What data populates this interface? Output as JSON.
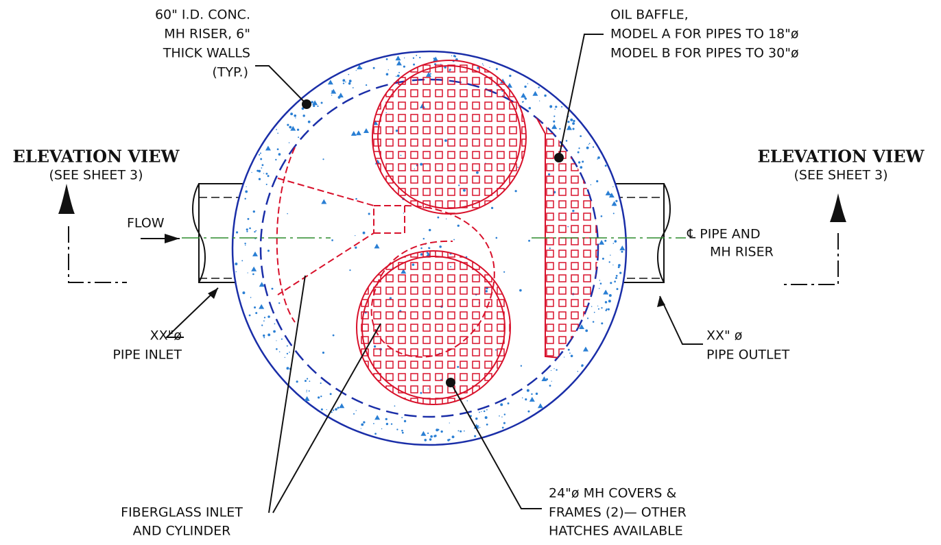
{
  "callouts": {
    "riser": [
      "60\" I.D. CONC.",
      "MH RISER, 6\"",
      "THICK WALLS",
      "(TYP.)"
    ],
    "baffle": [
      "OIL BAFFLE,",
      "MODEL A FOR PIPES TO 18\"ø",
      "MODEL B FOR PIPES TO 30\"ø"
    ],
    "elevation_left": [
      "ELEVATION VIEW",
      "(SEE SHEET 3)"
    ],
    "elevation_right": [
      "ELEVATION VIEW",
      "(SEE SHEET 3)"
    ],
    "flow": "FLOW",
    "centerline": [
      "℄ PIPE AND",
      "MH RISER"
    ],
    "inlet": [
      "XX\"ø",
      "PIPE INLET"
    ],
    "outlet": [
      "XX\" ø",
      "PIPE OUTLET"
    ],
    "fiberglass": [
      "FIBERGLASS INLET",
      "AND CYLINDER"
    ],
    "covers": [
      "24\"ø MH COVERS &",
      "FRAMES (2)— OTHER",
      "HATCHES AVAILABLE"
    ]
  }
}
